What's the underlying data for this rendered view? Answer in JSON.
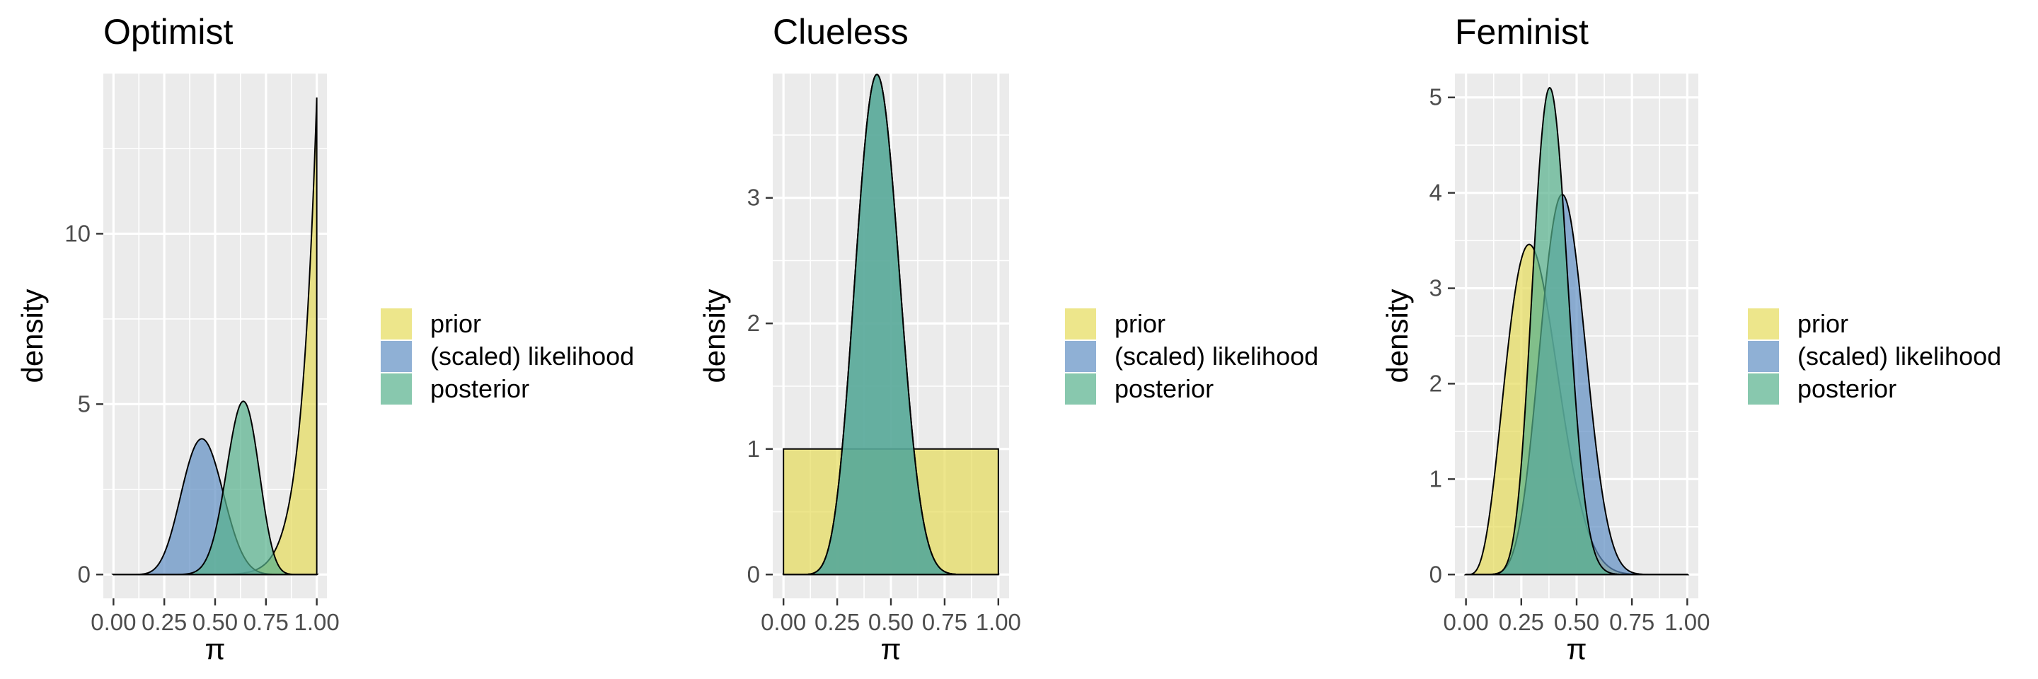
{
  "colors": {
    "prior": "#e5dc5a",
    "likelihood": "#5f8fc3",
    "posterior": "#55b08c",
    "panel_bg": "#ebebeb",
    "grid": "#ffffff",
    "outline": "#000000"
  },
  "legend": {
    "items": [
      {
        "key": "prior",
        "label": "prior"
      },
      {
        "key": "likelihood",
        "label": "(scaled) likelihood"
      },
      {
        "key": "posterior",
        "label": "posterior"
      }
    ]
  },
  "chart_data": [
    {
      "type": "area",
      "title": "Optimist",
      "xlabel": "π",
      "ylabel": "density",
      "xlim": [
        0,
        1
      ],
      "ylim": [
        0,
        14
      ],
      "x_ticks": [
        "0.00",
        "0.25",
        "0.50",
        "0.75",
        "1.00"
      ],
      "y_ticks": [
        0,
        5,
        10
      ],
      "series": [
        {
          "key": "prior",
          "name": "prior",
          "dist": "beta",
          "alpha": 14,
          "beta": 1
        },
        {
          "key": "likelihood",
          "name": "(scaled) likelihood",
          "dist": "beta",
          "alpha": 11,
          "beta": 14
        },
        {
          "key": "posterior",
          "name": "posterior",
          "dist": "beta",
          "alpha": 24,
          "beta": 14
        }
      ]
    },
    {
      "type": "area",
      "title": "Clueless",
      "xlabel": "π",
      "ylabel": "density",
      "xlim": [
        0,
        1
      ],
      "ylim": [
        0,
        3.8
      ],
      "x_ticks": [
        "0.00",
        "0.25",
        "0.50",
        "0.75",
        "1.00"
      ],
      "y_ticks": [
        0,
        1,
        2,
        3
      ],
      "series": [
        {
          "key": "prior",
          "name": "prior",
          "dist": "beta",
          "alpha": 1,
          "beta": 1
        },
        {
          "key": "likelihood",
          "name": "(scaled) likelihood",
          "dist": "beta",
          "alpha": 11,
          "beta": 14
        },
        {
          "key": "posterior",
          "name": "posterior",
          "dist": "beta",
          "alpha": 11,
          "beta": 14
        }
      ]
    },
    {
      "type": "area",
      "title": "Feminist",
      "xlabel": "π",
      "ylabel": "density",
      "xlim": [
        0,
        1
      ],
      "ylim": [
        0,
        5
      ],
      "x_ticks": [
        "0.00",
        "0.25",
        "0.50",
        "0.75",
        "1.00"
      ],
      "y_ticks": [
        0,
        1,
        2,
        3,
        4,
        5
      ],
      "series": [
        {
          "key": "prior",
          "name": "prior",
          "dist": "beta",
          "alpha": 5,
          "beta": 11
        },
        {
          "key": "likelihood",
          "name": "(scaled) likelihood",
          "dist": "beta",
          "alpha": 11,
          "beta": 14
        },
        {
          "key": "posterior",
          "name": "posterior",
          "dist": "beta",
          "alpha": 15,
          "beta": 24
        }
      ]
    }
  ]
}
